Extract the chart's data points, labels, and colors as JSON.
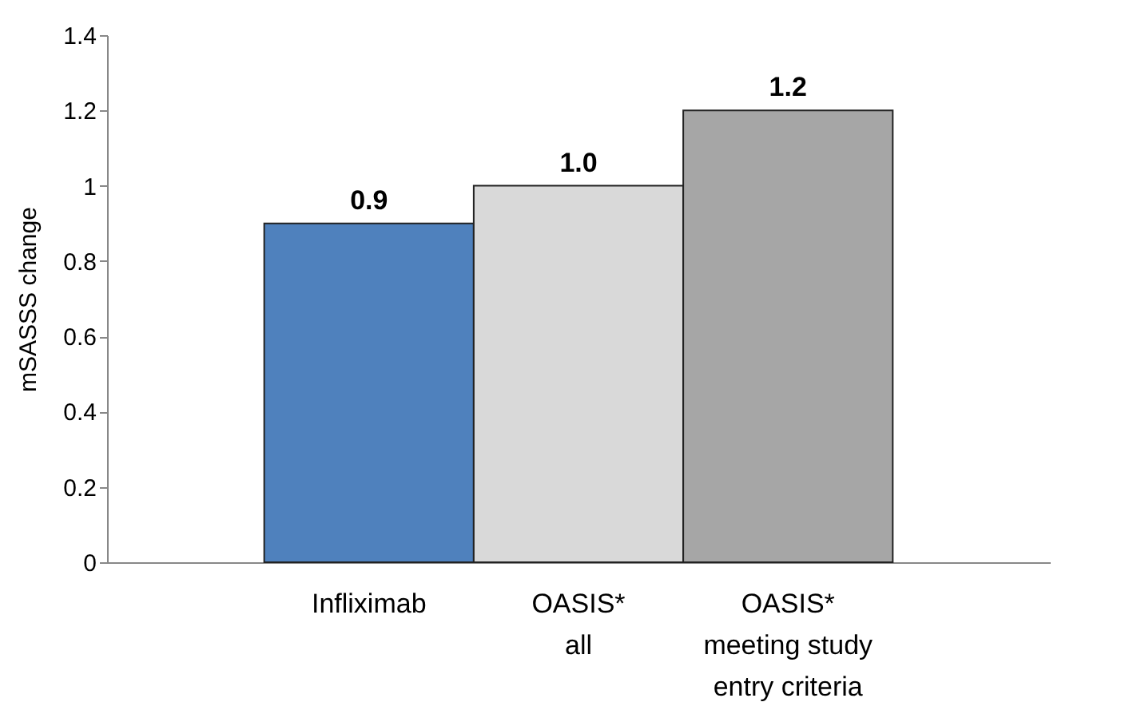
{
  "chart_data": {
    "type": "bar",
    "ylabel": "mSASSS change",
    "categories": [
      "Infliximab",
      "OASIS*\nall",
      "OASIS*\nmeeting study\nentry criteria"
    ],
    "values": [
      0.9,
      1.0,
      1.2
    ],
    "colors": [
      "#4f81bd",
      "#d9d9d9",
      "#a6a6a6"
    ],
    "value_labels": [
      "0.9",
      "1.0",
      "1.2"
    ],
    "ylim": [
      0,
      1.4
    ],
    "yticks": [
      0,
      0.2,
      0.4,
      0.6,
      0.8,
      1,
      1.2,
      1.4
    ],
    "grid": false
  }
}
